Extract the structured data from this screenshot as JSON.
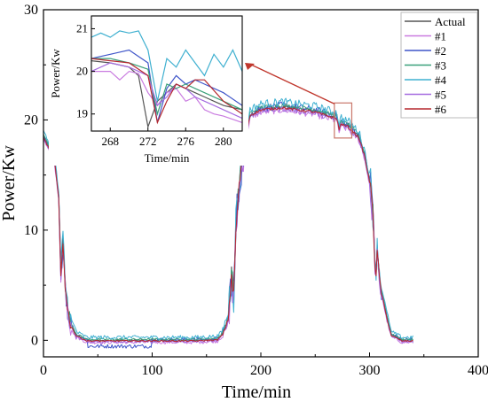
{
  "chart_data": {
    "type": "line",
    "xlabel": "Time/min",
    "ylabel": "Power/Kw",
    "xlim": [
      0,
      400
    ],
    "ylim": [
      -1.5,
      30
    ],
    "xticks": [
      0,
      100,
      200,
      300,
      400
    ],
    "yticks": [
      0,
      10,
      20,
      30
    ],
    "grid": false,
    "legend_position": "top-right",
    "series": [
      {
        "name": "Actual",
        "color": "#555555",
        "offset": 0.0,
        "noise": 0.12
      },
      {
        "name": "#1",
        "color": "#c97be0",
        "offset": -0.3,
        "noise": 0.25
      },
      {
        "name": "#2",
        "color": "#3f55c9",
        "offset": 0.1,
        "noise": 0.3,
        "tail_offset": -0.6
      },
      {
        "name": "#3",
        "color": "#3aa07a",
        "offset": 0.15,
        "noise": 0.15
      },
      {
        "name": "#4",
        "color": "#3fb0d0",
        "offset": 0.45,
        "noise": 0.3
      },
      {
        "name": "#5",
        "color": "#a56be0",
        "offset": -0.2,
        "noise": 0.2
      },
      {
        "name": "#6",
        "color": "#b5282e",
        "offset": -0.1,
        "noise": 0.1
      }
    ],
    "base_profile": {
      "x": [
        0,
        10,
        14,
        16,
        18,
        20,
        22,
        25,
        30,
        40,
        60,
        100,
        140,
        160,
        165,
        170,
        173,
        175,
        177,
        180,
        182,
        185,
        190,
        200,
        220,
        250,
        270,
        272,
        274,
        276,
        280,
        290,
        295,
        300,
        303,
        305,
        306,
        307,
        310,
        315,
        320,
        330,
        340
      ],
      "y": [
        18.5,
        16.5,
        13,
        6,
        9,
        5,
        3,
        1.5,
        0.5,
        0,
        0,
        0,
        0,
        0.1,
        0.6,
        2,
        6,
        4,
        10,
        14,
        16,
        18,
        20.5,
        21,
        21.2,
        20.8,
        20.2,
        19.2,
        19.8,
        19.6,
        19.5,
        18.5,
        17,
        14.5,
        12,
        7,
        6,
        8,
        5,
        2.5,
        0.5,
        0,
        0
      ]
    },
    "inset": {
      "xlim": [
        266,
        282
      ],
      "ylim": [
        18.6,
        21.3
      ],
      "xticks": [
        268,
        272,
        276,
        280
      ],
      "yticks": [
        19,
        20,
        21
      ],
      "xlabel": "Time/min",
      "ylabel": "Power/Kw",
      "series": [
        {
          "name": "Actual",
          "x": [
            266,
            268,
            270,
            271,
            272,
            273,
            274,
            275,
            276,
            277,
            278,
            279,
            280,
            282
          ],
          "y": [
            20.25,
            20.2,
            20.1,
            19.9,
            18.7,
            19.3,
            19.5,
            19.7,
            19.6,
            19.5,
            19.4,
            19.3,
            19.2,
            19.1
          ]
        },
        {
          "name": "#1",
          "x": [
            266,
            268,
            269,
            270,
            271,
            272,
            273,
            274,
            275,
            276,
            277,
            278,
            279,
            280,
            282
          ],
          "y": [
            20.0,
            20.0,
            19.8,
            20.0,
            19.95,
            19.5,
            19.2,
            19.5,
            19.6,
            19.3,
            19.4,
            19.1,
            19.0,
            18.95,
            18.8
          ]
        },
        {
          "name": "#2",
          "x": [
            266,
            268,
            270,
            271,
            272,
            273,
            274,
            275,
            276,
            277,
            278,
            280,
            282
          ],
          "y": [
            20.3,
            20.4,
            20.5,
            20.35,
            20.2,
            18.8,
            19.6,
            19.9,
            19.7,
            19.8,
            19.7,
            19.5,
            19.2
          ]
        },
        {
          "name": "#3",
          "x": [
            266,
            268,
            270,
            272,
            273,
            274,
            275,
            276,
            277,
            278,
            280,
            282
          ],
          "y": [
            20.3,
            20.3,
            20.2,
            20.05,
            19.0,
            19.7,
            19.6,
            19.7,
            19.6,
            19.5,
            19.3,
            19.1
          ]
        },
        {
          "name": "#4",
          "x": [
            266,
            267,
            268,
            269,
            270,
            271,
            272,
            273,
            274,
            275,
            276,
            277,
            278,
            279,
            280,
            281,
            282
          ],
          "y": [
            20.8,
            20.9,
            20.8,
            20.95,
            20.9,
            20.95,
            20.5,
            19.3,
            20.3,
            20.1,
            20.5,
            20.2,
            19.9,
            20.4,
            20.1,
            20.5,
            20.0
          ]
        },
        {
          "name": "#5",
          "x": [
            266,
            268,
            270,
            271,
            272,
            273,
            274,
            275,
            276,
            277,
            278,
            279,
            280,
            282
          ],
          "y": [
            20.0,
            20.2,
            20.1,
            20.0,
            19.9,
            19.2,
            19.4,
            19.7,
            19.6,
            19.4,
            19.3,
            19.2,
            19.1,
            18.9
          ]
        },
        {
          "name": "#6",
          "x": [
            266,
            268,
            270,
            272,
            273,
            274,
            275,
            276,
            277,
            278,
            280,
            282
          ],
          "y": [
            20.3,
            20.25,
            20.2,
            19.9,
            18.8,
            19.3,
            19.7,
            19.6,
            19.8,
            19.8,
            19.3,
            19.0
          ]
        }
      ]
    },
    "highlight_box": {
      "xlim": [
        266,
        282
      ],
      "ylim": [
        18.6,
        21.3
      ],
      "color": "#c9776a"
    }
  }
}
